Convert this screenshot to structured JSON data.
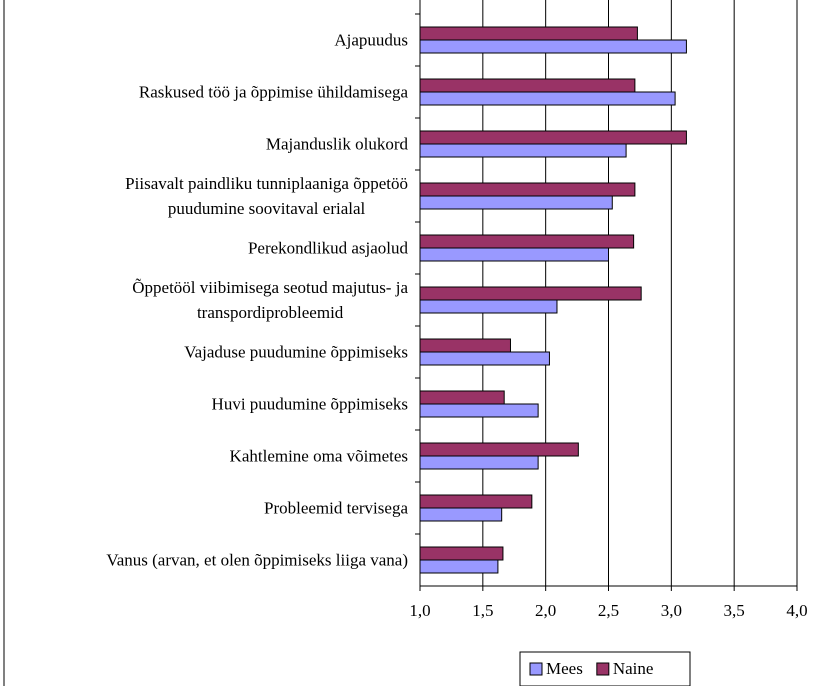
{
  "chart_data": {
    "type": "hbar",
    "categories": [
      "Ajapuudus",
      "Raskused töö ja õppimise ühildamisega",
      "Majanduslik olukord",
      "Piisavalt paindliku tunniplaaniga õppetöö\npuudumine soovitaval erialal",
      "Perekondlikud asjaolud",
      "Õppetööl viibimisega seotud majutus- ja\ntranspordiprobleemid",
      "Vajaduse puudumine õppimiseks",
      "Huvi puudumine õppimiseks",
      "Kahtlemine oma võimetes",
      "Probleemid tervisega",
      "Vanus (arvan, et olen õppimiseks liiga vana)"
    ],
    "series": [
      {
        "name": "Mees",
        "color": "#9999ff",
        "values": [
          3.12,
          3.03,
          2.64,
          2.53,
          2.5,
          2.09,
          2.03,
          1.94,
          1.94,
          1.65,
          1.62
        ]
      },
      {
        "name": "Naine",
        "color": "#993366",
        "values": [
          2.73,
          2.71,
          3.12,
          2.71,
          2.7,
          2.76,
          1.72,
          1.67,
          2.26,
          1.89,
          1.66
        ]
      }
    ],
    "xlim": [
      1,
      4
    ],
    "xticks": [
      {
        "value": 1,
        "label": "1,0"
      },
      {
        "value": 1.5,
        "label": "1,5"
      },
      {
        "value": 2,
        "label": "2,0"
      },
      {
        "value": 2.5,
        "label": "2,5"
      },
      {
        "value": 3,
        "label": "3,0"
      },
      {
        "value": 3.5,
        "label": "3,5"
      },
      {
        "value": 4,
        "label": "4,0"
      }
    ],
    "grid": true,
    "legend": "bottom"
  }
}
